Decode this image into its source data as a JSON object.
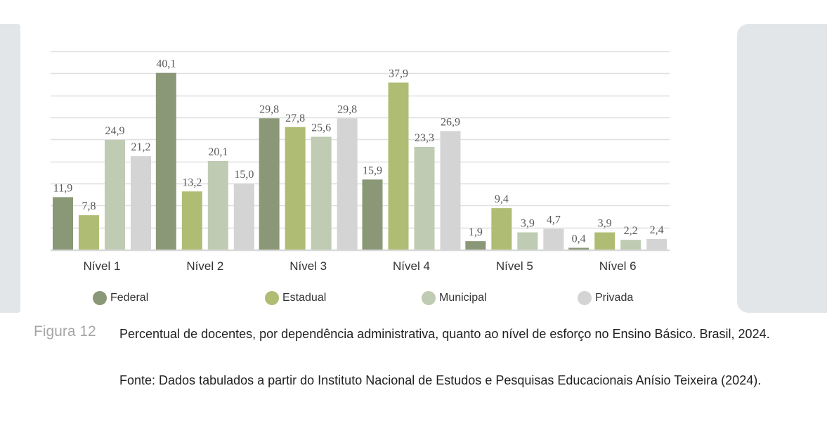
{
  "chart_data": {
    "type": "bar",
    "title": "",
    "xlabel": "",
    "ylabel": "",
    "ylim": [
      0,
      45
    ],
    "grid": true,
    "gridline_step": 5,
    "legend_position": "bottom",
    "categories": [
      "Nível 1",
      "Nível 2",
      "Nível 3",
      "Nível 4",
      "Nível 5",
      "Nível 6"
    ],
    "series": [
      {
        "name": "Federal",
        "color": "#8b9877",
        "values": [
          11.9,
          40.1,
          29.8,
          15.9,
          1.9,
          0.4
        ],
        "labels": [
          "11,9",
          "40,1",
          "29,8",
          "15,9",
          "1,9",
          "0,4"
        ]
      },
      {
        "name": "Estadual",
        "color": "#afbd74",
        "values": [
          7.8,
          13.2,
          27.8,
          37.9,
          9.4,
          3.9
        ],
        "labels": [
          "7,8",
          "13,2",
          "27,8",
          "37,9",
          "9,4",
          "3,9"
        ]
      },
      {
        "name": "Municipal",
        "color": "#bfcbb2",
        "values": [
          24.9,
          20.1,
          25.6,
          23.3,
          3.9,
          2.2
        ],
        "labels": [
          "24,9",
          "20,1",
          "25,6",
          "23,3",
          "3,9",
          "2,2"
        ]
      },
      {
        "name": "Privada",
        "color": "#d4d4d4",
        "values": [
          21.2,
          15.0,
          29.8,
          26.9,
          4.7,
          2.4
        ],
        "labels": [
          "21,2",
          "15,0",
          "29,8",
          "26,9",
          "4,7",
          "2,4"
        ]
      }
    ]
  },
  "caption": {
    "figure_label": "Figura 12",
    "title": "Percentual de docentes, por dependência administrativa, quanto ao nível de esforço no Ensino Básico. Brasil, 2024.",
    "source": "Fonte: Dados tabulados a partir do Instituto Nacional de Estudos e Pesquisas Educacionais Anísio Teixeira (2024)."
  },
  "colors": {
    "gridline": "#e0e0e0",
    "axis": "#d9d9d9",
    "panel": "#e3e6e9",
    "figure_label": "#a6a6a6"
  }
}
